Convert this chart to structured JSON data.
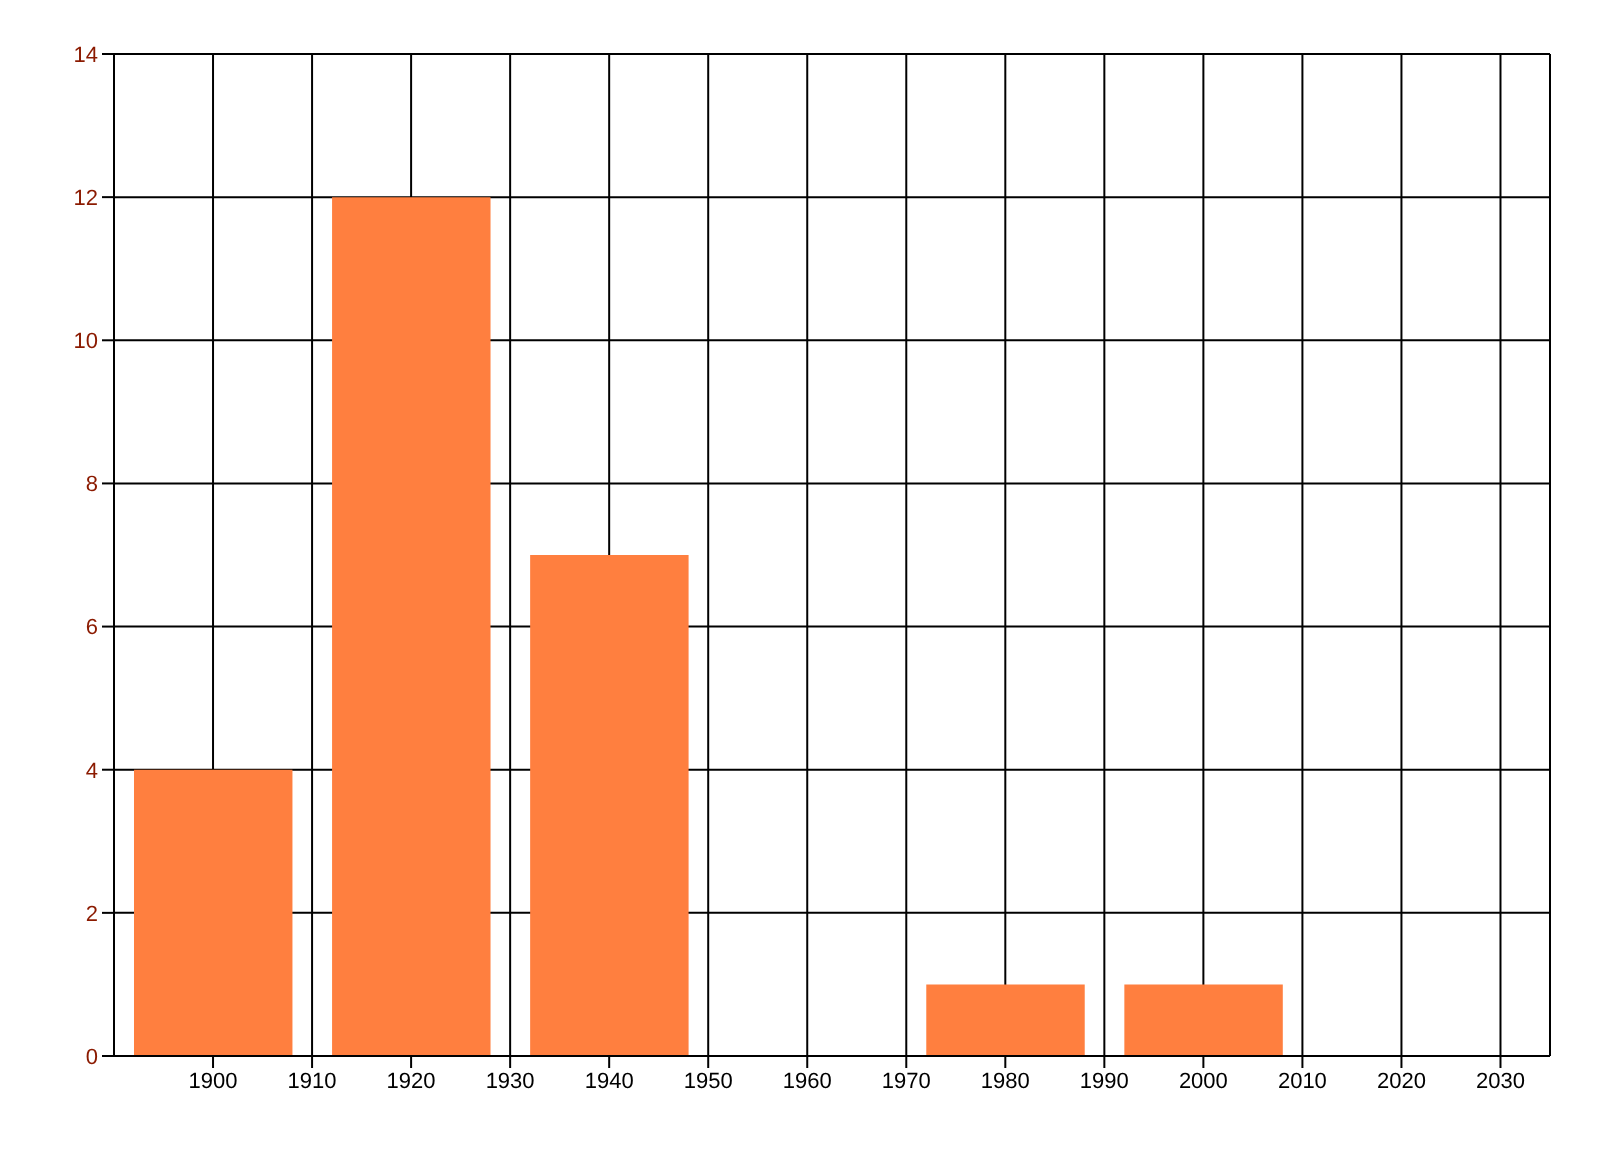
{
  "chart_data": {
    "type": "bar",
    "x": [
      1900,
      1920,
      1940,
      1980,
      2000
    ],
    "values": [
      4,
      12,
      7,
      1,
      1
    ],
    "color": "#ff7f3f",
    "xlim": [
      1890,
      2035
    ],
    "xticks": [
      1900,
      1910,
      1920,
      1930,
      1940,
      1950,
      1960,
      1970,
      1980,
      1990,
      2000,
      2010,
      2020,
      2030
    ],
    "ylim": [
      0,
      14
    ],
    "yticks": [
      0,
      2,
      4,
      6,
      8,
      10,
      12,
      14
    ],
    "grid": true
  }
}
